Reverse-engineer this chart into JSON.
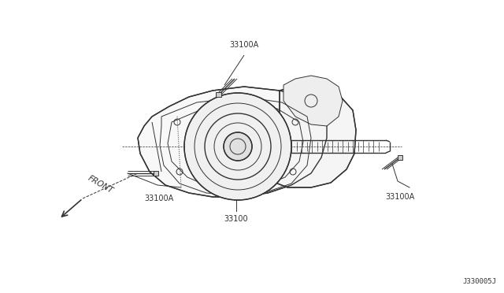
{
  "background_color": "#ffffff",
  "line_color": "#333333",
  "label_color": "#333333",
  "labels": {
    "top_bolt": "33100A",
    "left_bolt": "33100A",
    "bottom_center": "33100",
    "right_bolt": "33100A"
  },
  "front_arrow_text": "FRONT",
  "diagram_id": "J330005J",
  "fig_width": 6.4,
  "fig_height": 3.72,
  "dpi": 100
}
